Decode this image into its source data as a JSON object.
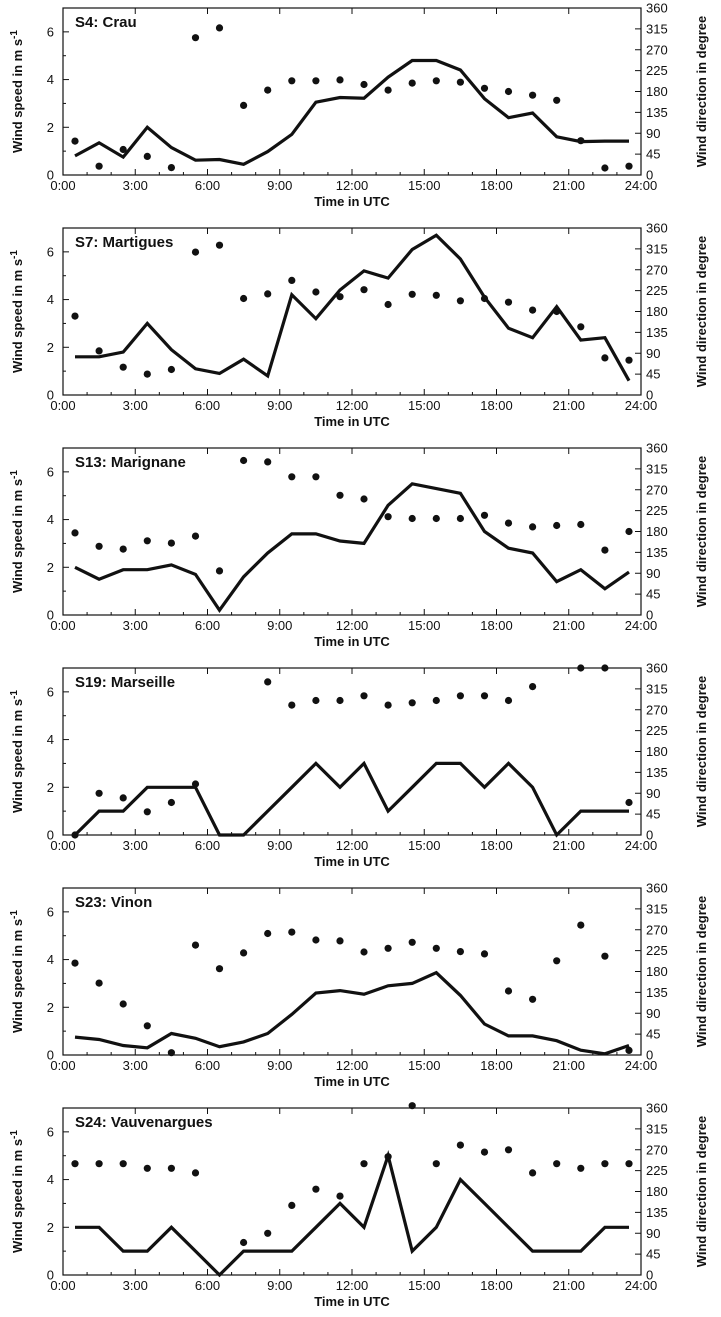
{
  "chart_data": [
    {
      "type": "line",
      "title": "S4: Crau",
      "xlabel": "Time in UTC",
      "ylabel": "Wind speed in m s",
      "ylabel_superscript": "-1",
      "y2label": "Wind direction in degree",
      "x_ticks": [
        "0:00",
        "3:00",
        "6:00",
        "9:00",
        "12:00",
        "15:00",
        "18:00",
        "21:00",
        "24:00"
      ],
      "y_ticks": [
        "0",
        "2",
        "4",
        "6"
      ],
      "y2_ticks": [
        "0",
        "45",
        "90",
        "135",
        "180",
        "225",
        "270",
        "315",
        "360"
      ],
      "xlim": [
        0,
        24
      ],
      "ylim": [
        0,
        7
      ],
      "y2lim": [
        0,
        360
      ],
      "x": [
        0.5,
        1.5,
        2.5,
        3.5,
        4.5,
        5.5,
        6.5,
        7.5,
        8.5,
        9.5,
        10.5,
        11.5,
        12.5,
        13.5,
        14.5,
        15.5,
        16.5,
        17.5,
        18.5,
        19.5,
        20.5,
        21.5,
        22.5,
        23.5
      ],
      "series": [
        {
          "axis": "left",
          "style": "line",
          "values": [
            0.8,
            1.35,
            0.75,
            2.0,
            1.15,
            0.62,
            0.65,
            0.45,
            0.98,
            1.7,
            3.05,
            3.25,
            3.22,
            4.1,
            4.8,
            4.8,
            4.4,
            3.2,
            2.4,
            2.6,
            1.6,
            1.4,
            1.42,
            1.42
          ]
        },
        {
          "axis": "right",
          "style": "dots",
          "values": [
            73,
            19,
            55,
            40,
            16,
            296,
            317,
            150,
            183,
            203,
            203,
            205,
            195,
            183,
            198,
            203,
            200,
            187,
            180,
            172,
            161,
            74,
            15,
            19
          ]
        }
      ]
    },
    {
      "type": "line",
      "title": "S7: Martigues",
      "xlabel": "Time in UTC",
      "ylabel": "Wind speed in m s",
      "ylabel_superscript": "-1",
      "y2label": "Wind direction in degree",
      "x_ticks": [
        "0:00",
        "3:00",
        "6:00",
        "9:00",
        "12:00",
        "15:00",
        "18:00",
        "21:00",
        "24:00"
      ],
      "y_ticks": [
        "0",
        "2",
        "4",
        "6"
      ],
      "y2_ticks": [
        "0",
        "45",
        "90",
        "135",
        "180",
        "225",
        "270",
        "315",
        "360"
      ],
      "xlim": [
        0,
        24
      ],
      "ylim": [
        0,
        7
      ],
      "y2lim": [
        0,
        360
      ],
      "x": [
        0.5,
        1.5,
        2.5,
        3.5,
        4.5,
        5.5,
        6.5,
        7.5,
        8.5,
        9.5,
        10.5,
        11.5,
        12.5,
        13.5,
        14.5,
        15.5,
        16.5,
        17.5,
        18.5,
        19.5,
        20.5,
        21.5,
        22.5,
        23.5
      ],
      "series": [
        {
          "axis": "left",
          "style": "line",
          "values": [
            1.6,
            1.6,
            1.8,
            3.0,
            1.9,
            1.1,
            0.9,
            1.5,
            0.8,
            4.2,
            3.2,
            4.4,
            5.2,
            4.9,
            6.1,
            6.7,
            5.7,
            4.1,
            2.8,
            2.4,
            3.7,
            2.3,
            2.4,
            0.6
          ]
        },
        {
          "axis": "right",
          "style": "dots",
          "values": [
            170,
            95,
            60,
            45,
            55,
            308,
            323,
            208,
            218,
            247,
            222,
            212,
            227,
            195,
            217,
            215,
            203,
            208,
            200,
            183,
            180,
            147,
            80,
            75
          ]
        }
      ]
    },
    {
      "type": "line",
      "title": "S13: Marignane",
      "xlabel": "Time in UTC",
      "ylabel": "Wind speed in m s",
      "ylabel_superscript": "-1",
      "y2label": "Wind direction in degree",
      "x_ticks": [
        "0:00",
        "3:00",
        "6:00",
        "9:00",
        "12:00",
        "15:00",
        "18:00",
        "21:00",
        "24:00"
      ],
      "y_ticks": [
        "0",
        "2",
        "4",
        "6"
      ],
      "y2_ticks": [
        "0",
        "45",
        "90",
        "135",
        "180",
        "225",
        "270",
        "315",
        "360"
      ],
      "xlim": [
        0,
        24
      ],
      "ylim": [
        0,
        7
      ],
      "y2lim": [
        0,
        360
      ],
      "x": [
        0.5,
        1.5,
        2.5,
        3.5,
        4.5,
        5.5,
        6.5,
        7.5,
        8.5,
        9.5,
        10.5,
        11.5,
        12.5,
        13.5,
        14.5,
        15.5,
        16.5,
        17.5,
        18.5,
        19.5,
        20.5,
        21.5,
        22.5,
        23.5
      ],
      "series": [
        {
          "axis": "left",
          "style": "line",
          "values": [
            2.0,
            1.5,
            1.9,
            1.9,
            2.1,
            1.7,
            0.2,
            1.6,
            2.6,
            3.4,
            3.4,
            3.1,
            3.0,
            4.6,
            5.5,
            5.3,
            5.1,
            3.5,
            2.8,
            2.6,
            1.4,
            1.9,
            1.1,
            1.8
          ]
        },
        {
          "axis": "right",
          "style": "dots",
          "values": [
            177,
            148,
            142,
            160,
            155,
            170,
            95,
            333,
            330,
            298,
            298,
            258,
            250,
            212,
            208,
            208,
            208,
            215,
            198,
            190,
            193,
            195,
            140,
            180
          ]
        }
      ]
    },
    {
      "type": "line",
      "title": "S19: Marseille",
      "xlabel": "Time in UTC",
      "ylabel": "Wind speed in m s",
      "ylabel_superscript": "-1",
      "y2label": "Wind direction in degree",
      "x_ticks": [
        "0:00",
        "3:00",
        "6:00",
        "9:00",
        "12:00",
        "15:00",
        "18:00",
        "21:00",
        "24:00"
      ],
      "y_ticks": [
        "0",
        "2",
        "4",
        "6"
      ],
      "y2_ticks": [
        "0",
        "45",
        "90",
        "135",
        "180",
        "225",
        "270",
        "315",
        "360"
      ],
      "xlim": [
        0,
        24
      ],
      "ylim": [
        0,
        7
      ],
      "y2lim": [
        0,
        360
      ],
      "x": [
        0.5,
        1.5,
        2.5,
        3.5,
        4.5,
        5.5,
        6.5,
        7.5,
        8.5,
        9.5,
        10.5,
        11.5,
        12.5,
        13.5,
        14.5,
        15.5,
        16.5,
        17.5,
        18.5,
        19.5,
        20.5,
        21.5,
        22.5,
        23.5
      ],
      "series": [
        {
          "axis": "left",
          "style": "line",
          "values": [
            0,
            1,
            1,
            2,
            2,
            2,
            0,
            0,
            1,
            2,
            3,
            2,
            3,
            1,
            2,
            3,
            3,
            2,
            3,
            2,
            0,
            1,
            1,
            1
          ]
        },
        {
          "axis": "right",
          "style": "dots",
          "values": [
            0,
            90,
            80,
            50,
            70,
            110,
            null,
            null,
            330,
            280,
            290,
            290,
            300,
            280,
            285,
            290,
            300,
            300,
            290,
            320,
            null,
            360,
            360,
            70
          ]
        }
      ]
    },
    {
      "type": "line",
      "title": "S23: Vinon",
      "xlabel": "Time in UTC",
      "ylabel": "Wind speed in m s",
      "ylabel_superscript": "-1",
      "y2label": "Wind direction in degree",
      "x_ticks": [
        "0:00",
        "3:00",
        "6:00",
        "9:00",
        "12:00",
        "15:00",
        "18:00",
        "21:00",
        "24:00"
      ],
      "y_ticks": [
        "0",
        "2",
        "4",
        "6"
      ],
      "y2_ticks": [
        "0",
        "45",
        "90",
        "135",
        "180",
        "225",
        "270",
        "315",
        "360"
      ],
      "xlim": [
        0,
        24
      ],
      "ylim": [
        0,
        7
      ],
      "y2lim": [
        0,
        360
      ],
      "x": [
        0.5,
        1.5,
        2.5,
        3.5,
        4.5,
        5.5,
        6.5,
        7.5,
        8.5,
        9.5,
        10.5,
        11.5,
        12.5,
        13.5,
        14.5,
        15.5,
        16.5,
        17.5,
        18.5,
        19.5,
        20.5,
        21.5,
        22.5,
        23.5
      ],
      "series": [
        {
          "axis": "left",
          "style": "line",
          "values": [
            0.75,
            0.65,
            0.4,
            0.3,
            0.9,
            0.7,
            0.35,
            0.55,
            0.9,
            1.7,
            2.6,
            2.7,
            2.55,
            2.9,
            3.0,
            3.45,
            2.5,
            1.3,
            0.8,
            0.8,
            0.6,
            0.2,
            0.05,
            0.4
          ]
        },
        {
          "axis": "right",
          "style": "dots",
          "values": [
            198,
            155,
            110,
            63,
            5,
            237,
            186,
            220,
            262,
            265,
            248,
            246,
            222,
            230,
            243,
            230,
            223,
            218,
            138,
            120,
            203,
            280,
            213,
            10
          ]
        }
      ]
    },
    {
      "type": "line",
      "title": "S24: Vauvenargues",
      "xlabel": "Time in UTC",
      "ylabel": "Wind speed in m s",
      "ylabel_superscript": "-1",
      "y2label": "Wind direction in degree",
      "x_ticks": [
        "0:00",
        "3:00",
        "6:00",
        "9:00",
        "12:00",
        "15:00",
        "18:00",
        "21:00",
        "24:00"
      ],
      "y_ticks": [
        "0",
        "2",
        "4",
        "6"
      ],
      "y2_ticks": [
        "0",
        "45",
        "90",
        "135",
        "180",
        "225",
        "270",
        "315",
        "360"
      ],
      "xlim": [
        0,
        24
      ],
      "ylim": [
        0,
        7
      ],
      "y2lim": [
        0,
        360
      ],
      "x": [
        0.5,
        1.5,
        2.5,
        3.5,
        4.5,
        5.5,
        6.5,
        7.5,
        8.5,
        9.5,
        10.5,
        11.5,
        12.5,
        13.5,
        14.5,
        15.5,
        16.5,
        17.5,
        18.5,
        19.5,
        20.5,
        21.5,
        22.5,
        23.5
      ],
      "series": [
        {
          "axis": "left",
          "style": "line",
          "values": [
            2,
            2,
            1,
            1,
            2,
            1,
            0,
            1,
            1,
            1,
            2,
            3,
            2,
            5,
            1,
            2,
            4,
            3,
            2,
            1,
            1,
            1,
            2,
            2
          ]
        },
        {
          "axis": "right",
          "style": "dots",
          "values": [
            240,
            240,
            240,
            230,
            230,
            220,
            null,
            70,
            90,
            150,
            185,
            170,
            240,
            255,
            365,
            240,
            280,
            265,
            270,
            220,
            240,
            230,
            240,
            240
          ]
        }
      ]
    }
  ]
}
